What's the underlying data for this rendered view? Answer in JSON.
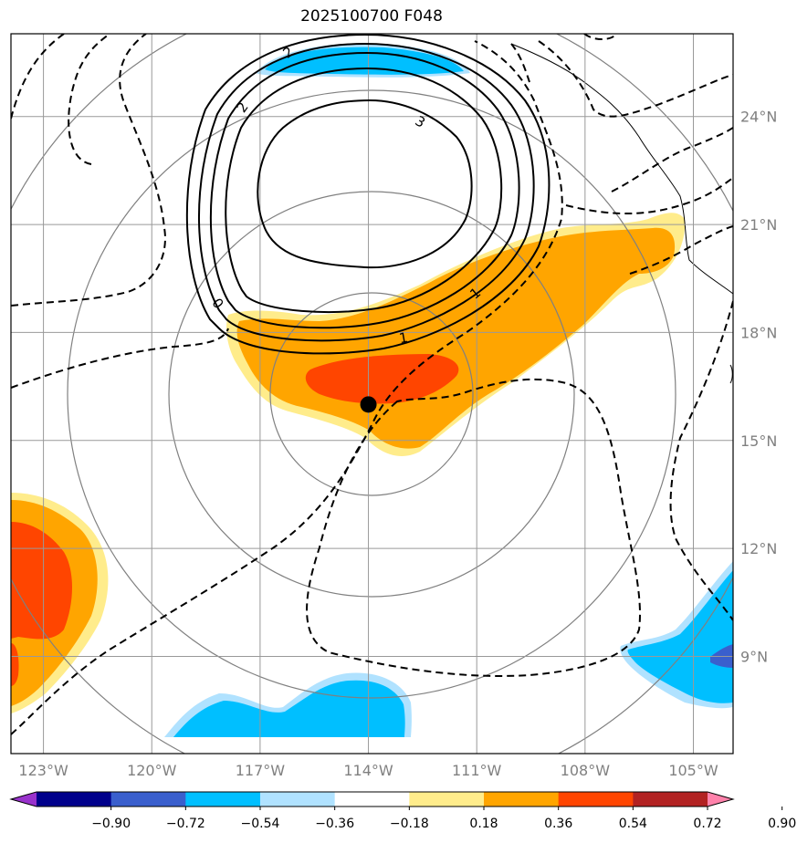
{
  "title": "2025100700 F048",
  "chart_data": {
    "type": "map",
    "title": "2025100700 F048",
    "lon_ticks": [
      "123°W",
      "120°W",
      "117°W",
      "114°W",
      "111°W",
      "108°W",
      "105°W"
    ],
    "lat_ticks": [
      "24°N",
      "21°N",
      "18°N",
      "15°N",
      "12°N",
      "9°N"
    ],
    "lon_values": [
      -123,
      -120,
      -117,
      -114,
      -111,
      -108,
      -105
    ],
    "lat_values": [
      24,
      21,
      18,
      15,
      12,
      9
    ],
    "lon_range": [
      -123.9,
      -103.9
    ],
    "lat_range": [
      6.3,
      26.3
    ],
    "center_marker": {
      "lon": -114.0,
      "lat": 16.0
    },
    "range_rings_deg": [
      3,
      6,
      9,
      12
    ],
    "contour_labels": [
      "2",
      "2",
      "3",
      "0",
      "1",
      "1"
    ],
    "colorbar": {
      "ticks": [
        "−0.90",
        "−0.72",
        "−0.54",
        "−0.36",
        "−0.18",
        "0.18",
        "0.36",
        "0.54",
        "0.72",
        "0.90"
      ],
      "colors": [
        "#9932CC",
        "#00008B",
        "#3A5FCD",
        "#00BFFF",
        "#B0E2FF",
        "#FFFFFF",
        "#FFEC8B",
        "#FFA500",
        "#FF4500",
        "#B22222",
        "#FF82AB"
      ]
    }
  }
}
